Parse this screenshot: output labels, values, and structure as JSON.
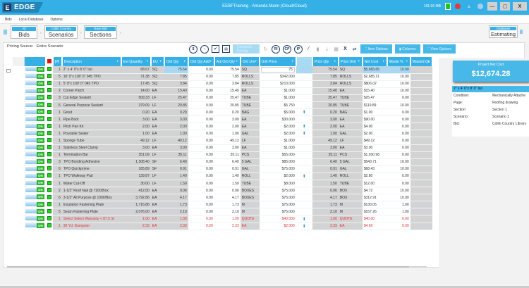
{
  "app": {
    "logo": "EDGE",
    "window_title": "EEBFTraining - Amanda Mann (Cloud/Cloud)",
    "memory": "191.00 MB"
  },
  "menu": [
    "Bids",
    "Local Database",
    "Options"
  ],
  "nav": {
    "bids": {
      "top": "All",
      "bottom": "Bids"
    },
    "scenarios": {
      "top": "Collin Country Library",
      "bottom": "Scenarios"
    },
    "sections": {
      "top": "Base Bid",
      "bottom": "Sections"
    },
    "database": {
      "top": "Database",
      "bottom": "Estimating"
    }
  },
  "toolbar": {
    "pricing_source_label": "Pricing Source:",
    "pricing_source_value": "Entire Scenario",
    "complete_pricing": "Complete Pricing",
    "item_options": "Item Options",
    "columns": "Columns",
    "view_options": "View Options",
    "icons": [
      "$",
      "clock",
      "check",
      "doc",
      "RI",
      "CP",
      "IP",
      "wand",
      "X1",
      "swap"
    ]
  },
  "grid": {
    "columns": [
      "",
      "",
      "[#]",
      "Description",
      "Est Quantity",
      "EU",
      "Ord Qty",
      "Ord Qty Add",
      "Adj Ord Qty",
      "Ord Uni",
      "Unit Price",
      "",
      "Price Qty",
      "Price Unit",
      "Net Cost",
      "Waste %",
      "Wasted Qu"
    ],
    "rows": [
      {
        "n": "1",
        "desc": "2\" x 4' 0\"x 8' 0\" Iso",
        "est": "68.67",
        "eu": "SQ",
        "ord": "75.54",
        "add": "0.00",
        "adj": "75.54",
        "ou": "SQ",
        "up": "75",
        "pin": false,
        "pq": "75.54",
        "pu": "SQ",
        "net": "$5,665.65",
        "waste": "10.00"
      },
      {
        "n": "5",
        "desc": "10' 0\"x 100' 0\" 045 TPO",
        "est": "71.38",
        "eu": "SQ",
        "ord": "7.85",
        "add": "0.00",
        "adj": "7.85",
        "ou": "ROLLS",
        "up": "$342.000",
        "pin": false,
        "pq": "7.85",
        "pu": "ROLLS",
        "net": "$2,685.21",
        "waste": "10.00"
      },
      {
        "n": "1",
        "desc": "5' 0\"x 100' 0\" 045 TPO",
        "est": "17.45",
        "eu": "SQ",
        "ord": "3.84",
        "add": "0.00",
        "adj": "3.84",
        "ou": "ROLLS",
        "up": "$210.000",
        "pin": false,
        "pq": "3.84",
        "pu": "ROLLS",
        "net": "$806.02",
        "waste": "10.00"
      },
      {
        "n": "2",
        "desc": "Corner Patch",
        "est": "14.00",
        "eu": "EA",
        "ord": "15.40",
        "add": "0.00",
        "adj": "15.40",
        "ou": "EA",
        "up": "$1.000",
        "pin": false,
        "pq": "15.40",
        "pu": "EA",
        "net": "$15.40",
        "waste": "10.00"
      },
      {
        "n": "3",
        "desc": "Cut Edge Sealant",
        "est": "509.33",
        "eu": "LF",
        "ord": "25.47",
        "add": "0.00",
        "adj": "25.47",
        "ou": "TUBE",
        "up": "$1.000",
        "pin": false,
        "pq": "25.47",
        "pu": "TUBE",
        "net": "$25.47",
        "waste": "0.00"
      },
      {
        "n": "6",
        "desc": "General Purpose Sealant",
        "est": "379.09",
        "eu": "LF",
        "ord": "20.85",
        "add": "0.00",
        "adj": "20.85",
        "ou": "TUBE",
        "up": "$5.750",
        "pin": false,
        "pq": "20.85",
        "pu": "TUBE",
        "net": "$119.89",
        "waste": "10.00"
      },
      {
        "n": "1",
        "desc": "Grout",
        "est": "0.20",
        "eu": "EA",
        "ord": "0.20",
        "add": "0.00",
        "adj": "0.20",
        "ou": "BAG",
        "up": "$5.000",
        "pin": true,
        "pq": "0.20",
        "pu": "BAG",
        "net": "$1.00",
        "waste": "0.00"
      },
      {
        "n": "1",
        "desc": "Pipe Boot",
        "est": "3.00",
        "eu": "EA",
        "ord": "3.00",
        "add": "0.00",
        "adj": "3.00",
        "ou": "EA",
        "up": "$30.000",
        "pin": false,
        "pq": "3.00",
        "pu": "EA",
        "net": "$90.00",
        "waste": "0.00"
      },
      {
        "n": "1",
        "desc": "Pitch Pan Kit",
        "est": "2.00",
        "eu": "EA",
        "ord": "2.00",
        "add": "0.00",
        "adj": "2.00",
        "ou": "EA",
        "up": "$2.000",
        "pin": true,
        "pq": "2.00",
        "pu": "EA",
        "net": "$4.00",
        "waste": "0.00"
      },
      {
        "n": "1",
        "desc": "Pourable Sealer",
        "est": "1.00",
        "eu": "EA",
        "ord": "1.00",
        "add": "0.00",
        "adj": "1.00",
        "ou": "GAL",
        "up": "$2.000",
        "pin": true,
        "pq": "1.00",
        "pu": "GAL",
        "net": "$2.00",
        "waste": "0.00"
      },
      {
        "n": "1",
        "desc": "Sponge Tube",
        "est": "49.12",
        "eu": "LF",
        "ord": "49.12",
        "add": "0.00",
        "adj": "49.12",
        "ou": "LF",
        "up": "$1.000",
        "pin": false,
        "pq": "49.12",
        "pu": "LF",
        "net": "$49.12",
        "waste": "0.00"
      },
      {
        "n": "1",
        "desc": "Stainless Steel Clamp",
        "est": "3.00",
        "eu": "EA",
        "ord": "3.00",
        "add": "0.00",
        "adj": "3.00",
        "ou": "EA",
        "up": "$1.000",
        "pin": false,
        "pq": "3.00",
        "pu": "EA",
        "net": "$3.00",
        "waste": "0.00"
      },
      {
        "n": "1",
        "desc": "Termination Bar",
        "est": "351.09",
        "eu": "LF",
        "ord": "35.11",
        "add": "0.00",
        "adj": "35.11",
        "ou": "PCS",
        "up": "$55.000",
        "pin": false,
        "pq": "35.11",
        "pu": "PCS",
        "net": "$1,930.98",
        "waste": "0.00"
      },
      {
        "n": "3",
        "desc": "TPO Bonding Adhesive",
        "est": "1,308.40",
        "eu": "SF",
        "ord": "6.40",
        "add": "0.00",
        "adj": "6.40",
        "ou": "5 GAL",
        "up": "$85.000",
        "pin": false,
        "pq": "6.40",
        "pu": "5 GAL",
        "net": "$543.71",
        "waste": "10.00"
      },
      {
        "n": "6",
        "desc": "TPO Quickprime",
        "est": "165.89",
        "eu": "SF",
        "ord": "0.91",
        "add": "0.00",
        "adj": "0.91",
        "ou": "GAL",
        "up": "$75.000",
        "pin": false,
        "pq": "0.91",
        "pu": "GAL",
        "net": "$68.43",
        "waste": "10.00"
      },
      {
        "n": "1",
        "desc": "TPO Walkway Pad",
        "est": "139.87",
        "eu": "LF",
        "ord": "1.40",
        "add": "0.00",
        "adj": "1.40",
        "ou": "ROLL",
        "up": "$2.000",
        "pin": true,
        "pq": "1.40",
        "pu": "ROLL",
        "net": "$2.80",
        "waste": "0.00"
      },
      {
        "n": "1",
        "desc": "Water Cut-Off",
        "est": "30.00",
        "eu": "LF",
        "ord": "1.50",
        "add": "0.00",
        "adj": "1.50",
        "ou": "TUBE",
        "up": "$8.000",
        "pin": false,
        "pq": "1.50",
        "pu": "TUBE",
        "net": "$12.00",
        "waste": "0.00"
      },
      {
        "n": "2",
        "desc": "1-1/2\" Roof Nail @ 7200/Box",
        "est": "412.00",
        "eu": "EA",
        "ord": "0.06",
        "add": "0.00",
        "adj": "0.06",
        "ou": "BOXES",
        "up": "$75.000",
        "pin": false,
        "pq": "0.06",
        "pu": "BOX",
        "net": "$4.72",
        "waste": "10.00"
      },
      {
        "n": "6",
        "desc": "3-1/2\" All Purpose @ 1000/Box",
        "est": "3,792.86",
        "eu": "EA",
        "ord": "4.17",
        "add": "0.00",
        "adj": "4.17",
        "ou": "BOXES",
        "up": "$75.000",
        "pin": false,
        "pq": "4.17",
        "pu": "BOX",
        "net": "$312.91",
        "waste": "10.00"
      },
      {
        "n": "1",
        "desc": "Insulation Fastening Plate",
        "est": "1,716.86",
        "eu": "EA",
        "ord": "1.73",
        "add": "0.00",
        "adj": "1.73",
        "ou": "M",
        "up": "$75.000",
        "pin": false,
        "pq": "1.73",
        "pu": "M",
        "net": "$130.05",
        "waste": "1.00"
      },
      {
        "n": "5",
        "desc": "Seam Fastening Plate",
        "est": "2,076.00",
        "eu": "EA",
        "ord": "2.10",
        "add": "0.00",
        "adj": "2.10",
        "ou": "M",
        "up": "$75.000",
        "pin": false,
        "pq": "2.10",
        "pu": "M",
        "net": "$157.26",
        "waste": "1.00"
      },
      {
        "n": "1",
        "desc": "Select Select Warranty < 87.5 SI",
        "est": "1.00",
        "eu": "EA",
        "ord": "1.00",
        "add": "0.00",
        "adj": "1.00",
        "ou": "QUOTE",
        "up": "$40.000",
        "pin": true,
        "pq": "1.00",
        "pu": "QUOTE",
        "net": "$40.00",
        "waste": "0.00",
        "red": true
      },
      {
        "n": "1",
        "desc": "30 Yd. Dumpster",
        "est": "2.33",
        "eu": "EA",
        "ord": "2.33",
        "add": "0.00",
        "adj": "2.33",
        "ou": "EA",
        "up": "$2.000",
        "pin": true,
        "pq": "2.33",
        "pu": "EA",
        "net": "$4.66",
        "waste": "0.00",
        "red": true
      }
    ],
    "toggle_label": "ON"
  },
  "side": {
    "project_net_cost_label": "Project Net Cost",
    "project_net_cost": "$12,674.28",
    "selected_item": "2\" x 4' 0\"x 8' 0\" Iso",
    "details": [
      {
        "k": "Condition:",
        "v": "Mechanically Attache"
      },
      {
        "k": "Page:",
        "v": "Roofing drawing"
      },
      {
        "k": "Section:",
        "v": "Section 1"
      },
      {
        "k": "Scenario:",
        "v": "Scenario 1"
      },
      {
        "k": "Bid:",
        "v": "Collin Country Library"
      }
    ]
  }
}
